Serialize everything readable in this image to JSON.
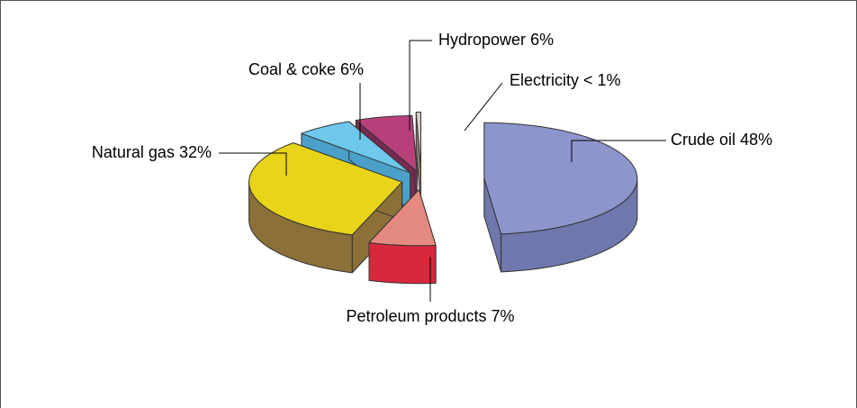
{
  "chart_data": {
    "type": "pie",
    "categories": [
      "Crude oil",
      "Petroleum products",
      "Natural gas",
      "Coal & coke",
      "Hydropower",
      "Electricity"
    ],
    "values": [
      48,
      7,
      32,
      6,
      6,
      0.5
    ],
    "value_labels": [
      "48%",
      "7%",
      "32%",
      "6%",
      "6%",
      "< 1%"
    ],
    "colors": [
      "#8c96cc",
      "#e58a80",
      "#e8d418",
      "#6dc8ec",
      "#b8407a",
      "#d8ccc4"
    ],
    "side_colors": [
      "#6e78ac",
      "#d8283c",
      "#8b7038",
      "#4aa0c8",
      "#7a2a50",
      "#8a7a70"
    ]
  }
}
